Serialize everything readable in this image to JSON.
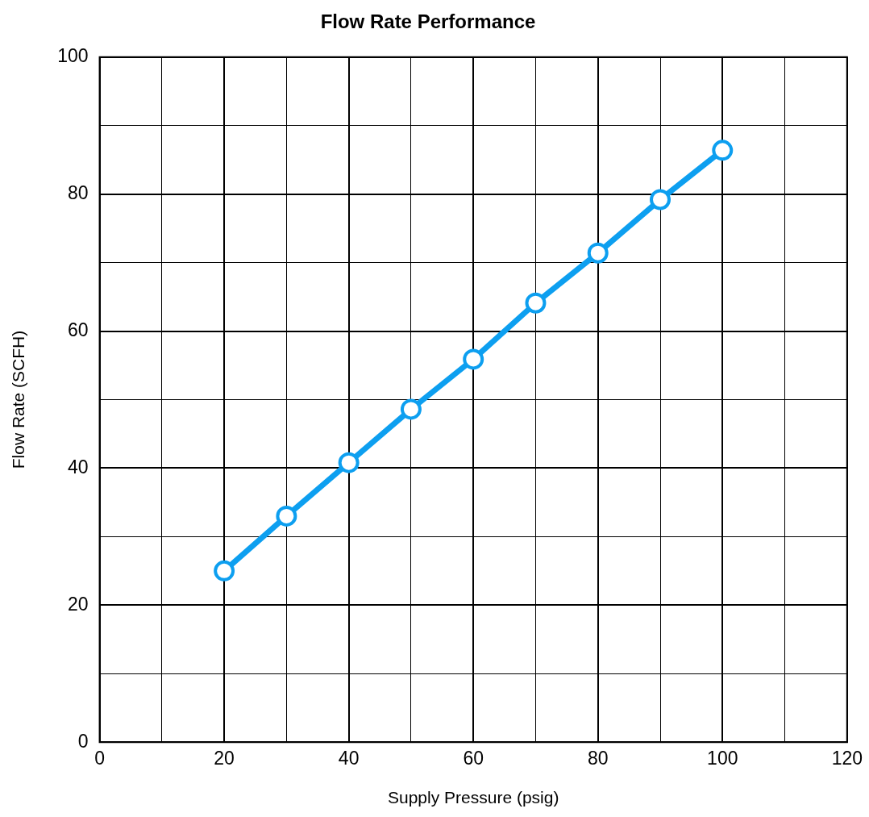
{
  "chart_data": {
    "type": "line",
    "title": "Flow Rate Performance",
    "xlabel": "Supply Pressure (psig)",
    "ylabel": "Flow Rate (SCFH)",
    "x": [
      20,
      30,
      40,
      50,
      60,
      70,
      80,
      90,
      100
    ],
    "series": [
      {
        "color": "#0d9ff0",
        "values": [
          25.0,
          33.0,
          40.8,
          48.6,
          55.9,
          64.1,
          71.4,
          79.2,
          86.4
        ]
      }
    ],
    "xlim": [
      0,
      120
    ],
    "xticks": [
      0,
      {
        "value": 10,
        "label": null
      },
      20,
      {
        "value": 30,
        "label": null
      },
      40,
      {
        "value": 50,
        "label": null
      },
      60,
      {
        "value": 70,
        "label": null
      },
      80,
      {
        "value": 90,
        "label": null
      },
      100,
      {
        "value": 110,
        "label": null
      },
      120
    ],
    "ylim": [
      0,
      100
    ],
    "yticks": [
      0,
      {
        "value": 10,
        "label": null
      },
      20,
      {
        "value": 30,
        "label": null
      },
      40,
      {
        "value": 50,
        "label": null
      },
      60,
      {
        "value": 70,
        "label": null
      },
      80,
      {
        "value": 90,
        "label": null
      },
      100
    ],
    "grid": true,
    "legend": false,
    "marker": "circle",
    "line_style": "solid"
  }
}
